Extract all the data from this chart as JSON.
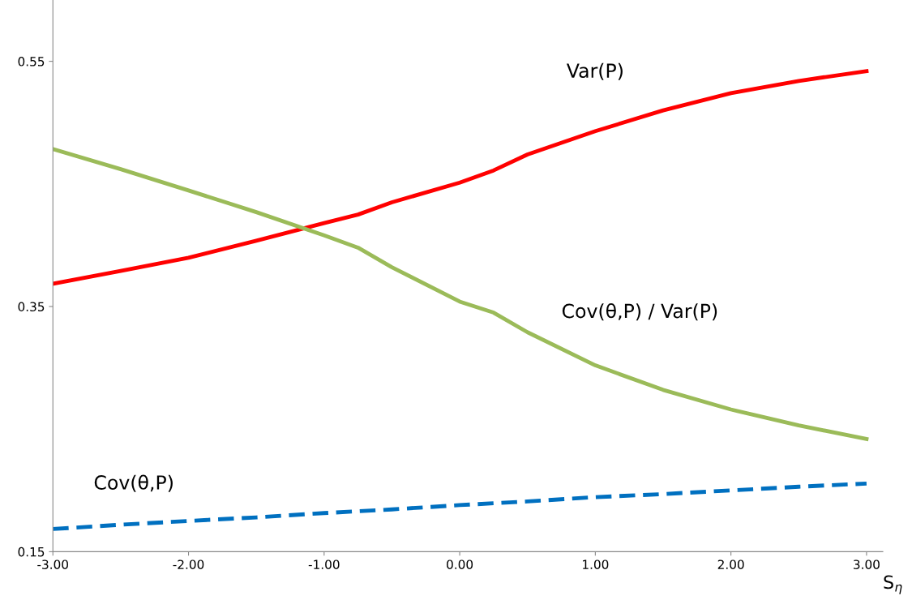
{
  "chart_data": {
    "type": "line",
    "xlabel": "S$_{η}$",
    "x": [
      -3,
      -2.5,
      -2,
      -1.5,
      -1,
      -0.75,
      -0.5,
      0,
      0.25,
      0.5,
      1,
      1.5,
      2,
      2.5,
      3
    ],
    "series": [
      {
        "name": "Var(P)",
        "color": "#ff0000",
        "values": [
          0.3685,
          0.379,
          0.3897,
          0.4036,
          0.418,
          0.425,
          0.435,
          0.451,
          0.461,
          0.474,
          0.493,
          0.51,
          0.524,
          0.534,
          0.542
        ]
      },
      {
        "name": "Cov(θ,P) / Var(P)",
        "color": "#9bbb59",
        "values": [
          0.4785,
          0.462,
          0.4447,
          0.427,
          0.408,
          0.398,
          0.382,
          0.354,
          0.345,
          0.329,
          0.302,
          0.282,
          0.266,
          0.253,
          0.242
        ]
      },
      {
        "name": "Cov(θ,P)",
        "color": "#0070c0",
        "line_style": "dashed",
        "values": [
          0.1685,
          0.172,
          0.1751,
          0.178,
          0.1815,
          0.183,
          0.1845,
          0.188,
          0.1895,
          0.191,
          0.1945,
          0.197,
          0.2,
          0.203,
          0.2056
        ]
      }
    ],
    "xlim": [
      -3,
      3.12
    ],
    "ylim": [
      0.15,
      0.6
    ],
    "xticks": [
      {
        "value": -3,
        "label": "-3.00"
      },
      {
        "value": -2,
        "label": "-2.00"
      },
      {
        "value": -1,
        "label": "-1.00"
      },
      {
        "value": 0,
        "label": "0.00"
      },
      {
        "value": 1,
        "label": "1.00"
      },
      {
        "value": 2,
        "label": "2.00"
      },
      {
        "value": 3,
        "label": "3.00"
      }
    ],
    "yticks": [
      0.15,
      0.35,
      0.55
    ],
    "grid": false,
    "legend": false,
    "marker": "none"
  }
}
